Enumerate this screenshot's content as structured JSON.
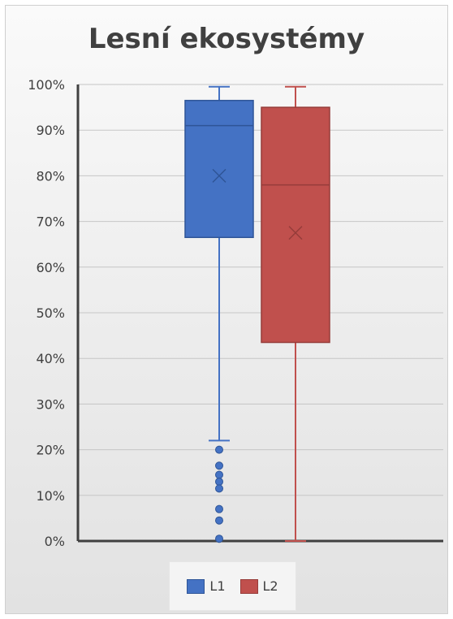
{
  "chart_data": {
    "type": "box",
    "title": "Lesní ekosystémy",
    "xlabel": "",
    "ylabel": "",
    "ylim": [
      0,
      100
    ],
    "y_ticks": [
      "0%",
      "10%",
      "20%",
      "30%",
      "40%",
      "50%",
      "60%",
      "70%",
      "80%",
      "90%",
      "100%"
    ],
    "grid": true,
    "legend_position": "bottom",
    "series": [
      {
        "name": "L1",
        "color": "#4472C4",
        "stroke": "#2F5597",
        "min": 22,
        "q1": 66.5,
        "median": 91,
        "mean": 80,
        "q3": 96.5,
        "max": 99.5,
        "outliers": [
          20,
          16.5,
          14.5,
          13,
          11.5,
          7,
          4.5,
          0.5
        ]
      },
      {
        "name": "L2",
        "color": "#C0504D",
        "stroke": "#963C3A",
        "min": 0,
        "q1": 43.5,
        "median": 78,
        "mean": 67.5,
        "q3": 95,
        "max": 99.5,
        "outliers": []
      }
    ]
  }
}
